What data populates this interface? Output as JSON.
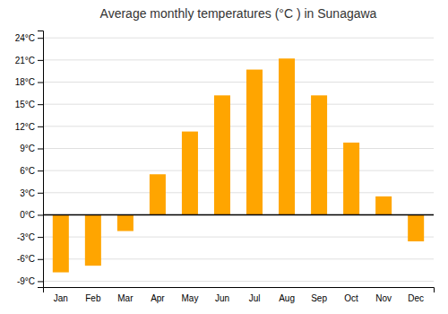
{
  "chart_data": {
    "type": "bar",
    "title": "Average monthly temperatures (°C ) in Sunagawa",
    "categories": [
      "Jan",
      "Feb",
      "Mar",
      "Apr",
      "May",
      "Jun",
      "Jul",
      "Aug",
      "Sep",
      "Oct",
      "Nov",
      "Dec"
    ],
    "values": [
      -7.8,
      -6.9,
      -2.2,
      5.5,
      11.3,
      16.2,
      19.7,
      21.2,
      16.2,
      9.8,
      2.5,
      -3.6
    ],
    "color": "#FFA500",
    "ylim": [
      -9.8,
      25.0
    ],
    "yticks": [
      {
        "value": -9,
        "label": "-9°C"
      },
      {
        "value": -6,
        "label": "-6°C"
      },
      {
        "value": -3,
        "label": "-3°C"
      },
      {
        "value": 0,
        "label": "0°C"
      },
      {
        "value": 3,
        "label": "3°C"
      },
      {
        "value": 6,
        "label": "6°C"
      },
      {
        "value": 9,
        "label": "9°C"
      },
      {
        "value": 12,
        "label": "12°C"
      },
      {
        "value": 15,
        "label": "15°C"
      },
      {
        "value": 18,
        "label": "18°C"
      },
      {
        "value": 21,
        "label": "21°C"
      },
      {
        "value": 24,
        "label": "24°C"
      }
    ],
    "grid": true
  }
}
